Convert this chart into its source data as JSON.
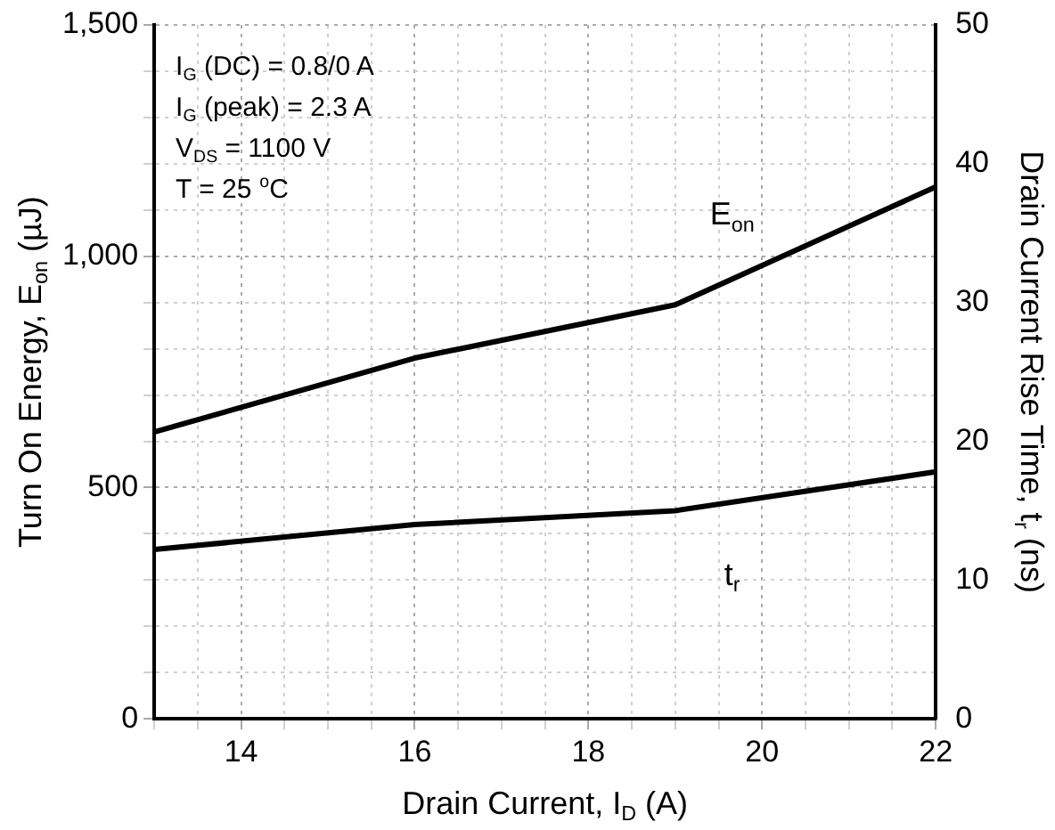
{
  "chart_data": {
    "type": "line",
    "xlabel": "Drain Current, I$_{D}$ (A)",
    "ylabel": "Turn On Energy, E$_{on}$ (µJ)",
    "y2label": "Drain Current Rise Time, t$_{r}$ (ns)",
    "x": [
      13,
      16,
      19,
      22
    ],
    "series": [
      {
        "name": "E$_{on}$",
        "color": "#000000",
        "values": [
          620,
          780,
          895,
          1150
        ]
      },
      {
        "name": "t$_{r}$",
        "color": "#000000",
        "values": [
          12.2,
          14,
          15,
          17.8
        ],
        "axis": "y2"
      }
    ],
    "xlim": [
      13,
      22
    ],
    "xticks": [
      {
        "value": 13,
        "label": null
      },
      {
        "value": 13.5,
        "label": null
      },
      14,
      {
        "value": 14.5,
        "label": null
      },
      {
        "value": 15,
        "label": null
      },
      {
        "value": 15.5,
        "label": null
      },
      16,
      {
        "value": 16.5,
        "label": null
      },
      {
        "value": 17,
        "label": null
      },
      {
        "value": 17.5,
        "label": null
      },
      18,
      {
        "value": 18.5,
        "label": null
      },
      {
        "value": 19,
        "label": null
      },
      {
        "value": 19.5,
        "label": null
      },
      20,
      {
        "value": 20.5,
        "label": null
      },
      {
        "value": 21,
        "label": null
      },
      {
        "value": 21.5,
        "label": null
      },
      22
    ],
    "ylim": [
      0,
      1500
    ],
    "yticks": [
      0,
      {
        "value": 100,
        "label": null
      },
      {
        "value": 200,
        "label": null
      },
      {
        "value": 300,
        "label": null
      },
      {
        "value": 400,
        "label": null
      },
      500,
      {
        "value": 600,
        "label": null
      },
      {
        "value": 700,
        "label": null
      },
      {
        "value": 800,
        "label": null
      },
      {
        "value": 900,
        "label": null
      },
      {
        "value": 1000,
        "label": "1,000"
      },
      {
        "value": 1100,
        "label": null
      },
      {
        "value": 1200,
        "label": null
      },
      {
        "value": 1300,
        "label": null
      },
      {
        "value": 1400,
        "label": null
      },
      {
        "value": 1500,
        "label": "1,500"
      }
    ],
    "y2lim": [
      0,
      50
    ],
    "y2ticks": [
      0,
      10,
      20,
      30,
      40,
      50
    ],
    "grid": true,
    "legend": false,
    "marker": "none",
    "line_style": "solid",
    "annotations": [
      "I$_{G}$ (DC) = 0.8/0 A",
      "I$_{G}$ (peak) = 2.3 A",
      "V$_{DS}$ = 1100 V",
      "T = 25 $^{o}$C"
    ]
  }
}
